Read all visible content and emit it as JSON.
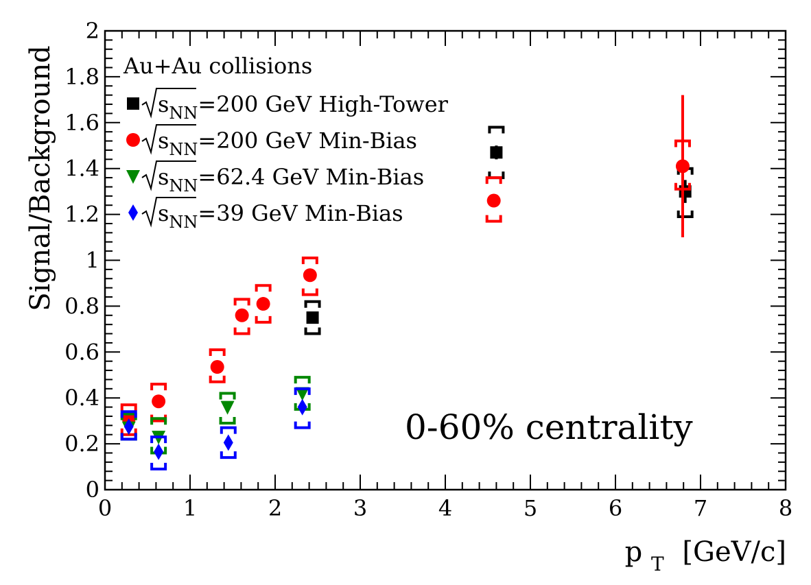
{
  "chart_data": {
    "type": "scatter",
    "xlabel": "p",
    "xlabel_sub": "T",
    "xlabel_unit": "[GeV/c]",
    "ylabel": "Signal/Background",
    "xlim": [
      0,
      8
    ],
    "ylim": [
      0,
      2
    ],
    "x_ticks": [
      "0",
      "1",
      "2",
      "3",
      "4",
      "5",
      "6",
      "7",
      "8"
    ],
    "y_ticks": [
      "0",
      "0.2",
      "0.4",
      "0.6",
      "0.8",
      "1",
      "1.2",
      "1.4",
      "1.6",
      "1.8",
      "2"
    ],
    "grid": false,
    "legend_placement": "top-left",
    "legend_title": "Au+Au collisions",
    "annotation": "0-60% centrality",
    "series": [
      {
        "label_prefix": "s",
        "label_sub": "NN",
        "label_suffix": "=200 GeV High-Tower",
        "marker": "square",
        "color": "#000000",
        "points": [
          {
            "x": 2.44,
            "y": 0.75,
            "sys_lo": 0.68,
            "sys_hi": 0.82,
            "stat_lo": 0.73,
            "stat_hi": 0.77
          },
          {
            "x": 4.6,
            "y": 1.47,
            "sys_lo": 1.36,
            "sys_hi": 1.58,
            "stat_lo": 1.44,
            "stat_hi": 1.5
          },
          {
            "x": 6.82,
            "y": 1.3,
            "sys_lo": 1.19,
            "sys_hi": 1.4,
            "stat_lo": 1.25,
            "stat_hi": 1.35
          }
        ]
      },
      {
        "label_prefix": "s",
        "label_sub": "NN",
        "label_suffix": "=200 GeV Min-Bias",
        "marker": "circle",
        "color": "#ff0000",
        "points": [
          {
            "x": 0.28,
            "y": 0.31,
            "sys_lo": 0.24,
            "sys_hi": 0.37,
            "stat_lo": 0.3,
            "stat_hi": 0.32
          },
          {
            "x": 0.63,
            "y": 0.385,
            "sys_lo": 0.3,
            "sys_hi": 0.46,
            "stat_lo": 0.375,
            "stat_hi": 0.395
          },
          {
            "x": 1.32,
            "y": 0.535,
            "sys_lo": 0.47,
            "sys_hi": 0.61,
            "stat_lo": 0.525,
            "stat_hi": 0.545
          },
          {
            "x": 1.61,
            "y": 0.76,
            "sys_lo": 0.68,
            "sys_hi": 0.83,
            "stat_lo": 0.75,
            "stat_hi": 0.77
          },
          {
            "x": 1.86,
            "y": 0.81,
            "sys_lo": 0.73,
            "sys_hi": 0.89,
            "stat_lo": 0.8,
            "stat_hi": 0.82
          },
          {
            "x": 2.41,
            "y": 0.935,
            "sys_lo": 0.85,
            "sys_hi": 1.01,
            "stat_lo": 0.925,
            "stat_hi": 0.945
          },
          {
            "x": 4.57,
            "y": 1.26,
            "sys_lo": 1.17,
            "sys_hi": 1.36,
            "stat_lo": 1.24,
            "stat_hi": 1.28
          },
          {
            "x": 6.79,
            "y": 1.41,
            "sys_lo": 1.31,
            "sys_hi": 1.52,
            "stat_lo": 1.1,
            "stat_hi": 1.72
          }
        ]
      },
      {
        "label_prefix": "s",
        "label_sub": "NN",
        "label_suffix": "=62.4 GeV Min-Bias",
        "marker": "triangle-down",
        "color": "#008800",
        "points": [
          {
            "x": 0.28,
            "y": 0.27,
            "sys_lo": 0.22,
            "sys_hi": 0.33,
            "stat_lo": 0.26,
            "stat_hi": 0.28
          },
          {
            "x": 0.63,
            "y": 0.23,
            "sys_lo": 0.16,
            "sys_hi": 0.31,
            "stat_lo": 0.22,
            "stat_hi": 0.24
          },
          {
            "x": 1.44,
            "y": 0.36,
            "sys_lo": 0.29,
            "sys_hi": 0.42,
            "stat_lo": 0.35,
            "stat_hi": 0.37
          },
          {
            "x": 2.32,
            "y": 0.42,
            "sys_lo": 0.35,
            "sys_hi": 0.49,
            "stat_lo": 0.41,
            "stat_hi": 0.43
          }
        ]
      },
      {
        "label_prefix": "s",
        "label_sub": "NN",
        "label_suffix": "=39 GeV Min-Bias",
        "marker": "diamond",
        "color": "#0000ff",
        "points": [
          {
            "x": 0.28,
            "y": 0.275,
            "sys_lo": 0.22,
            "sys_hi": 0.34,
            "stat_lo": 0.265,
            "stat_hi": 0.285
          },
          {
            "x": 0.63,
            "y": 0.165,
            "sys_lo": 0.09,
            "sys_hi": 0.23,
            "stat_lo": 0.155,
            "stat_hi": 0.175
          },
          {
            "x": 1.45,
            "y": 0.205,
            "sys_lo": 0.14,
            "sys_hi": 0.27,
            "stat_lo": 0.195,
            "stat_hi": 0.215
          },
          {
            "x": 2.32,
            "y": 0.36,
            "sys_lo": 0.27,
            "sys_hi": 0.44,
            "stat_lo": 0.35,
            "stat_hi": 0.37
          }
        ]
      }
    ]
  }
}
